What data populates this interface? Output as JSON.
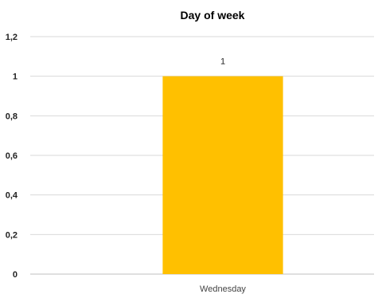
{
  "chart_data": {
    "type": "bar",
    "title": "Day of week",
    "categories": [
      "Wednesday"
    ],
    "values": [
      1
    ],
    "data_labels": [
      "1"
    ],
    "ylim": [
      0,
      1.2
    ],
    "y_ticks": [
      0,
      0.2,
      0.4,
      0.6,
      0.8,
      1,
      1.2
    ],
    "y_tick_labels": [
      "0",
      "0,2",
      "0,4",
      "0,6",
      "0,8",
      "1",
      "1,2"
    ],
    "grid": true,
    "legend": "none",
    "bar_color": "#FFC000"
  }
}
